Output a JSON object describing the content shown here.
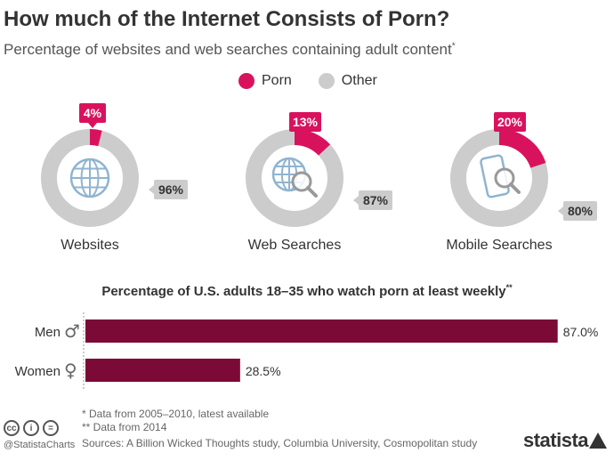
{
  "title": "How much of the Internet Consists of Porn?",
  "subtitle": "Percentage of websites and web searches containing adult content",
  "subtitle_mark": "*",
  "colors": {
    "porn": "#d9125e",
    "other": "#cccccc",
    "bar": "#7c0a36",
    "label_bg": "#cccccc"
  },
  "legend": [
    {
      "label": "Porn",
      "color": "#d9125e"
    },
    {
      "label": "Other",
      "color": "#cccccc"
    }
  ],
  "chart_data": [
    {
      "type": "pie",
      "variant": "donut",
      "legend": [
        "Porn",
        "Other"
      ],
      "donuts": [
        {
          "category": "Websites",
          "icon": "globe-icon",
          "porn": 4,
          "other": 96,
          "porn_label": "4%",
          "other_label": "96%"
        },
        {
          "category": "Web Searches",
          "icon": "globe-search-icon",
          "porn": 13,
          "other": 87,
          "porn_label": "13%",
          "other_label": "87%"
        },
        {
          "category": "Mobile Searches",
          "icon": "phone-search-icon",
          "porn": 20,
          "other": 80,
          "porn_label": "20%",
          "other_label": "80%"
        }
      ]
    },
    {
      "type": "bar",
      "orientation": "horizontal",
      "title": "Percentage of U.S. adults 18–35 who watch porn at least weekly",
      "title_mark": "**",
      "categories": [
        "Men",
        "Women"
      ],
      "category_symbols": [
        "♂",
        "♀"
      ],
      "values": [
        87.0,
        28.5
      ],
      "value_labels": [
        "87.0%",
        "28.5%"
      ],
      "xlim": [
        0,
        100
      ]
    }
  ],
  "footnotes": [
    "*   Data from 2005–2010, latest available",
    "** Data from 2014"
  ],
  "sources": "Sources: A Billion Wicked Thoughts study, Columbia University, Cosmopolitan study",
  "handle": "@StatistaCharts",
  "brand": "statista",
  "cc_icons": [
    "cc-icon",
    "by-icon",
    "nd-icon"
  ],
  "cc_glyphs": [
    "cc",
    "i",
    "="
  ]
}
